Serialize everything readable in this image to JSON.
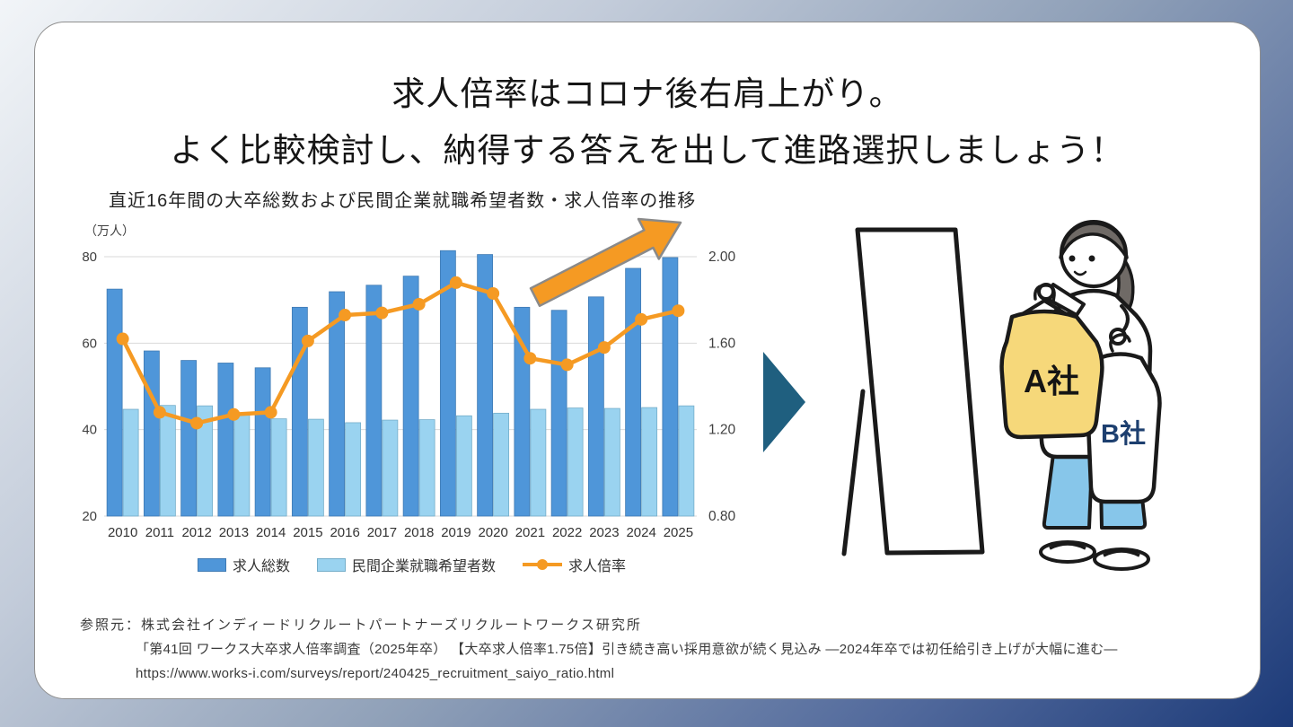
{
  "slide": {
    "title_line1": "求人倍率はコロナ後右肩上がり。",
    "title_line2": "よく比較検討し、納得する答えを出して進路選択しましょう！"
  },
  "chart_data": {
    "type": "bar+line combo",
    "title": "直近16年間の大卒総数および民間企業就職希望者数・求人倍率の推移",
    "unit_label": "（万人）",
    "categories": [
      "2010",
      "2011",
      "2012",
      "2013",
      "2014",
      "2015",
      "2016",
      "2017",
      "2018",
      "2019",
      "2020",
      "2021",
      "2022",
      "2023",
      "2024",
      "2025"
    ],
    "series": [
      {
        "name": "求人総数",
        "type": "bar",
        "color": "#4f96d9",
        "border": "#3f7ab3",
        "values": [
          72.5,
          58.2,
          56.0,
          55.4,
          54.3,
          68.3,
          71.9,
          73.4,
          75.5,
          81.4,
          80.5,
          68.3,
          67.6,
          70.7,
          77.3,
          79.8
        ]
      },
      {
        "name": "民間企業就職希望者数",
        "type": "bar",
        "color": "#9ad3f0",
        "border": "#74adc9",
        "values": [
          44.7,
          45.6,
          45.5,
          43.5,
          42.5,
          42.4,
          41.6,
          42.2,
          42.3,
          43.2,
          43.8,
          44.7,
          45.0,
          44.9,
          45.1,
          45.5
        ]
      },
      {
        "name": "求人倍率",
        "type": "line",
        "color": "#f59a23",
        "values": [
          1.62,
          1.28,
          1.23,
          1.27,
          1.28,
          1.61,
          1.73,
          1.74,
          1.78,
          1.88,
          1.83,
          1.53,
          1.5,
          1.58,
          1.71,
          1.75
        ]
      }
    ],
    "left_axis": {
      "ticks": [
        "80",
        "60",
        "40",
        "20"
      ],
      "range": [
        20,
        80
      ]
    },
    "right_axis": {
      "ticks": [
        "2.00",
        "1.60",
        "1.20",
        "0.80"
      ],
      "range": [
        0.8,
        2.0
      ]
    },
    "grid": true,
    "legend_position": "bottom",
    "annotation": {
      "type": "up-right-arrow",
      "color": "#f59a23"
    }
  },
  "illustration": {
    "shirt_a_label": "A社",
    "shirt_b_label": "B社"
  },
  "footer": {
    "line1": "参照元：株式会社インディードリクルートパートナーズリクルートワークス研究所",
    "line2": "「第41回 ワークス大卒求人倍率調査（2025年卒） 【大卒求人倍率1.75倍】引き続き高い採用意欲が続く見込み ―2024年卒では初任給引き上げが大幅に進む―",
    "line3": "https://www.works-i.com/surveys/report/240425_recruitment_saiyo_ratio.html"
  },
  "colors": {
    "grid": "#d9d9d9",
    "axis_text": "#3f3f3f",
    "arrow_fill": "#f59a23",
    "arrow_stroke": "#8a8a8a",
    "pointer": "#1f5f7f",
    "card_bg": "#ffffff",
    "sweater_yellow": "#f6d87a",
    "pants_blue": "#87c6ea",
    "hair_gray": "#6f6a66",
    "b_label_navy": "#1d3f6f"
  }
}
